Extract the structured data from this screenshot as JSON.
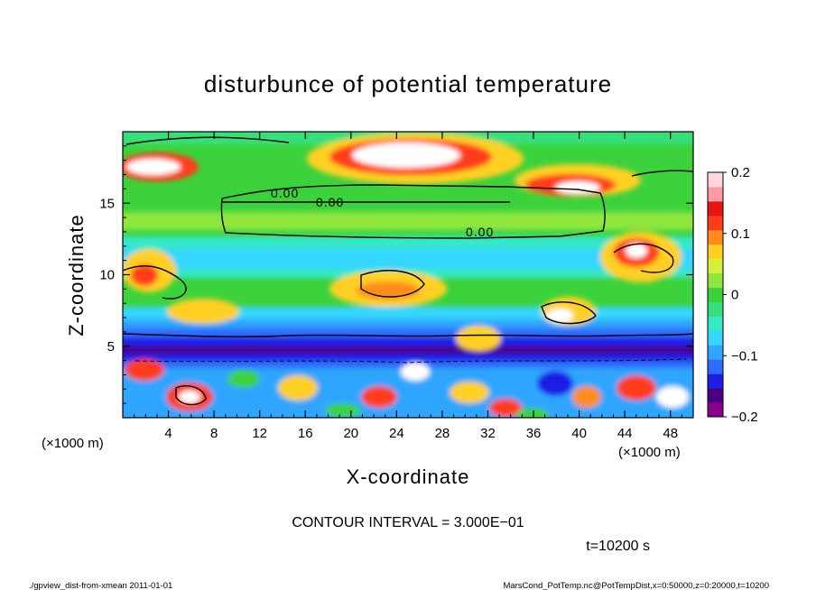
{
  "chart_data": {
    "type": "heatmap",
    "title": "disturbunce of potential temperature",
    "xlabel": "X-coordinate",
    "ylabel": "Z-coordinate",
    "x_units": "(×1000 m)",
    "y_units": "(×1000 m)",
    "xlim": [
      0,
      50
    ],
    "ylim": [
      0,
      20
    ],
    "x_ticks": [
      4,
      8,
      12,
      16,
      20,
      24,
      28,
      32,
      36,
      40,
      44,
      48
    ],
    "y_ticks": [
      5,
      10,
      15
    ],
    "colorbar": {
      "range": [
        -0.2,
        0.2
      ],
      "ticks": [
        "0.2",
        "0.1",
        "0",
        "−0.1",
        "−0.2"
      ],
      "colors": [
        "#8b008b",
        "#4b0082",
        "#1e1ee6",
        "#2f6bff",
        "#2fa6ff",
        "#35d6ff",
        "#35e8c8",
        "#35e07a",
        "#3cd23c",
        "#8ee63c",
        "#d8ee3c",
        "#ffd020",
        "#ff8c1a",
        "#ff3c1a",
        "#e81414",
        "#ff9aa0",
        "#ffd6e0"
      ]
    },
    "contour_labels": [
      "0.00",
      "0.00",
      "0.00"
    ],
    "contour_interval": "CONTOUR INTERVAL = 3.000E−01",
    "time": "t=10200 s"
  },
  "footer": {
    "left": "./gpview_dist-from-xmean  2011-01-01",
    "right": "MarsCond_PotTemp.nc@PotTempDist,x=0:50000,z=0:20000,t=10200"
  }
}
